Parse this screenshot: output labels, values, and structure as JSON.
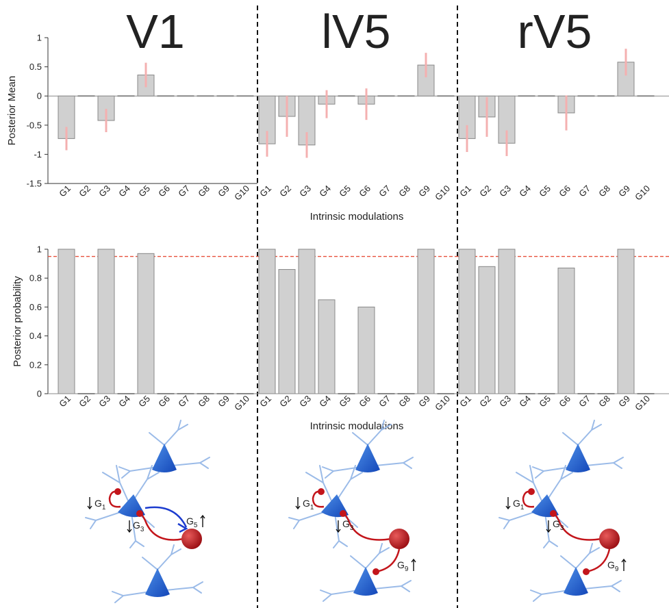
{
  "chart_data": [
    {
      "type": "bar",
      "title": "V1",
      "y_label": "Posterior Mean",
      "categories": [
        "G1",
        "G2",
        "G3",
        "G4",
        "G5",
        "G6",
        "G7",
        "G8",
        "G9",
        "G10"
      ],
      "values": [
        -0.73,
        0,
        -0.42,
        0,
        0.36,
        0,
        0,
        0,
        0,
        0
      ],
      "errors": [
        0.2,
        0,
        0.2,
        0,
        0.21,
        0,
        0,
        0,
        0,
        0
      ],
      "color": "#d0d0d0",
      "error_color": "#f4b0b0",
      "ylim": [
        -1.5,
        1
      ],
      "yticks": [
        -1.5,
        -1,
        -0.5,
        0,
        0.5,
        1
      ]
    },
    {
      "type": "bar",
      "title": "lV5",
      "x_label": "Intrinsic modulations",
      "categories": [
        "G1",
        "G2",
        "G3",
        "G4",
        "G5",
        "G6",
        "G7",
        "G8",
        "G9",
        "G10"
      ],
      "values": [
        -0.82,
        -0.35,
        -0.84,
        -0.14,
        0,
        -0.14,
        0,
        0,
        0.53,
        0
      ],
      "errors": [
        0.22,
        0.35,
        0.22,
        0.24,
        0,
        0.27,
        0,
        0,
        0.21,
        0
      ],
      "color": "#d0d0d0",
      "error_color": "#f4b0b0",
      "ylim": [
        -1.5,
        1
      ]
    },
    {
      "type": "bar",
      "title": "rV5",
      "categories": [
        "G1",
        "G2",
        "G3",
        "G4",
        "G5",
        "G6",
        "G7",
        "G8",
        "G9",
        "G10"
      ],
      "values": [
        -0.73,
        -0.36,
        -0.81,
        0,
        0,
        -0.29,
        0,
        0,
        0.58,
        0
      ],
      "errors": [
        0.23,
        0.34,
        0.22,
        0,
        0,
        0.3,
        0,
        0,
        0.23,
        0
      ],
      "color": "#d0d0d0",
      "error_color": "#f4b0b0",
      "ylim": [
        -1.5,
        1
      ]
    },
    {
      "type": "bar",
      "y_label": "Posterior probability",
      "categories": [
        "G1",
        "G2",
        "G3",
        "G4",
        "G5",
        "G6",
        "G7",
        "G8",
        "G9",
        "G10"
      ],
      "values": [
        1,
        0,
        1,
        0,
        0.97,
        0,
        0,
        0,
        0,
        0
      ],
      "color": "#d0d0d0",
      "threshold": 0.95,
      "threshold_color": "#e8503a",
      "ylim": [
        0,
        1
      ],
      "yticks": [
        0,
        0.2,
        0.4,
        0.6,
        0.8,
        1
      ]
    },
    {
      "type": "bar",
      "x_label": "Intrinsic modulations",
      "categories": [
        "G1",
        "G2",
        "G3",
        "G4",
        "G5",
        "G6",
        "G7",
        "G8",
        "G9",
        "G10"
      ],
      "values": [
        1,
        0.86,
        1,
        0.65,
        0,
        0.6,
        0,
        0,
        1,
        0
      ],
      "color": "#d0d0d0",
      "threshold": 0.95,
      "threshold_color": "#e8503a",
      "ylim": [
        0,
        1
      ]
    },
    {
      "type": "bar",
      "categories": [
        "G1",
        "G2",
        "G3",
        "G4",
        "G5",
        "G6",
        "G7",
        "G8",
        "G9",
        "G10"
      ],
      "values": [
        1,
        0.88,
        1,
        0,
        0,
        0.87,
        0,
        0,
        1,
        0
      ],
      "color": "#d0d0d0",
      "threshold": 0.95,
      "threshold_color": "#e8503a",
      "ylim": [
        0,
        1
      ]
    }
  ],
  "diagrams": [
    {
      "labels": [
        {
          "base": "G",
          "sub": "1"
        },
        {
          "base": "G",
          "sub": "3"
        },
        {
          "base": "G",
          "sub": "5"
        }
      ]
    },
    {
      "labels": [
        {
          "base": "G",
          "sub": "1"
        },
        {
          "base": "G",
          "sub": "3"
        },
        {
          "base": "G",
          "sub": "9"
        }
      ]
    },
    {
      "labels": [
        {
          "base": "G",
          "sub": "1"
        },
        {
          "base": "G",
          "sub": "3"
        },
        {
          "base": "G",
          "sub": "9"
        }
      ]
    }
  ]
}
